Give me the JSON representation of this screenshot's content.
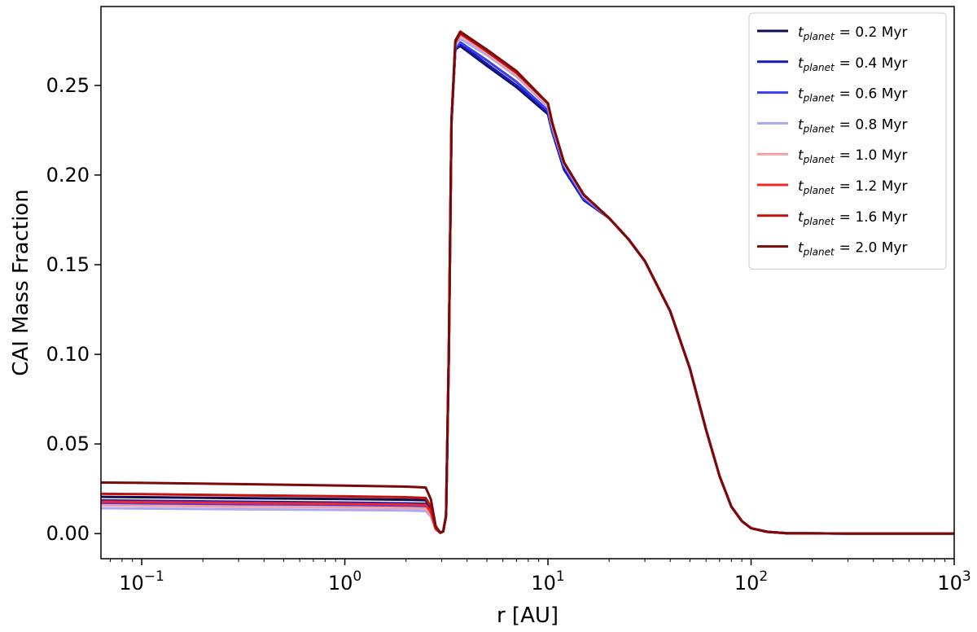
{
  "chart_data": {
    "type": "line",
    "xlabel": "r [AU]",
    "ylabel": "CAI Mass Fraction",
    "xscale": "log",
    "xlim": [
      0.063,
      1000
    ],
    "ylim": [
      -0.014,
      0.294
    ],
    "x_ticks": [
      {
        "value": 0.1,
        "base": "10",
        "exp": "−1"
      },
      {
        "value": 1,
        "base": "10",
        "exp": "0"
      },
      {
        "value": 10,
        "base": "10",
        "exp": "1"
      },
      {
        "value": 100,
        "base": "10",
        "exp": "2"
      },
      {
        "value": 1000,
        "base": "10",
        "exp": "3"
      }
    ],
    "y_ticks": [
      "0.00",
      "0.05",
      "0.10",
      "0.15",
      "0.20",
      "0.25"
    ],
    "legend_position": "top-right",
    "legend_var": "t",
    "legend_sub": "planet",
    "series": [
      {
        "name": "= 0.2 Myr",
        "color": "#0d0d4d",
        "opacity": 1.0,
        "x": [
          0.063,
          0.1,
          0.3,
          1,
          2,
          2.5,
          2.65,
          2.8,
          2.95,
          3.05,
          3.15,
          3.25,
          3.35,
          3.5,
          3.7,
          5,
          7,
          10,
          10.5,
          12,
          15,
          20,
          25,
          30,
          40,
          50,
          60,
          70,
          80,
          90,
          100,
          120,
          150,
          300,
          1000
        ],
        "y": [
          0.0205,
          0.0203,
          0.0198,
          0.0193,
          0.0189,
          0.0186,
          0.014,
          0.003,
          0.0005,
          0.0012,
          0.01,
          0.1,
          0.23,
          0.27,
          0.272,
          0.261,
          0.249,
          0.234,
          0.224,
          0.204,
          0.187,
          0.176,
          0.164,
          0.152,
          0.124,
          0.092,
          0.058,
          0.032,
          0.015,
          0.007,
          0.003,
          0.001,
          0.0002,
          0.0,
          0.0
        ]
      },
      {
        "name": "= 0.4 Myr",
        "color": "#1818b8",
        "opacity": 1.0,
        "x": [
          0.063,
          0.1,
          0.3,
          1,
          2,
          2.5,
          2.65,
          2.8,
          2.95,
          3.05,
          3.15,
          3.25,
          3.35,
          3.5,
          3.7,
          5,
          7,
          10,
          10.5,
          12,
          15,
          20,
          25,
          30,
          40,
          50,
          60,
          70,
          80,
          90,
          100,
          120,
          150,
          300,
          1000
        ],
        "y": [
          0.0185,
          0.0183,
          0.0178,
          0.0173,
          0.0169,
          0.0166,
          0.0125,
          0.0028,
          0.0005,
          0.0012,
          0.01,
          0.1,
          0.23,
          0.27,
          0.273,
          0.262,
          0.25,
          0.235,
          0.224,
          0.203,
          0.186,
          0.176,
          0.164,
          0.152,
          0.124,
          0.092,
          0.058,
          0.032,
          0.015,
          0.007,
          0.003,
          0.001,
          0.0002,
          0.0,
          0.0
        ]
      },
      {
        "name": "= 0.6 Myr",
        "color": "#3c3cf0",
        "opacity": 1.0,
        "x": [
          0.063,
          0.1,
          0.3,
          1,
          2,
          2.5,
          2.65,
          2.8,
          2.95,
          3.05,
          3.15,
          3.25,
          3.35,
          3.5,
          3.7,
          5,
          7,
          10,
          10.5,
          12,
          15,
          20,
          25,
          30,
          40,
          50,
          60,
          70,
          80,
          90,
          100,
          120,
          150,
          300,
          1000
        ],
        "y": [
          0.0165,
          0.0163,
          0.0158,
          0.0153,
          0.015,
          0.0147,
          0.0112,
          0.0025,
          0.0005,
          0.0012,
          0.01,
          0.1,
          0.23,
          0.271,
          0.274,
          0.264,
          0.252,
          0.236,
          0.225,
          0.205,
          0.187,
          0.176,
          0.164,
          0.152,
          0.124,
          0.092,
          0.058,
          0.032,
          0.015,
          0.007,
          0.003,
          0.001,
          0.0002,
          0.0,
          0.0
        ]
      },
      {
        "name": "= 0.8 Myr",
        "color": "#a8a8f5",
        "opacity": 1.0,
        "x": [
          0.063,
          0.1,
          0.3,
          1,
          2,
          2.5,
          2.65,
          2.8,
          2.95,
          3.05,
          3.15,
          3.25,
          3.35,
          3.5,
          3.7,
          5,
          7,
          10,
          10.5,
          12,
          15,
          20,
          25,
          30,
          40,
          50,
          60,
          70,
          80,
          90,
          100,
          120,
          150,
          300,
          1000
        ],
        "y": [
          0.0142,
          0.014,
          0.0136,
          0.0132,
          0.0129,
          0.0126,
          0.0096,
          0.0022,
          0.0005,
          0.0012,
          0.01,
          0.1,
          0.23,
          0.272,
          0.276,
          0.267,
          0.255,
          0.238,
          0.227,
          0.206,
          0.188,
          0.176,
          0.164,
          0.152,
          0.124,
          0.092,
          0.058,
          0.032,
          0.015,
          0.007,
          0.003,
          0.001,
          0.0002,
          0.0,
          0.0
        ]
      },
      {
        "name": "= 1.0 Myr",
        "color": "#f5a0a0",
        "opacity": 1.0,
        "x": [
          0.063,
          0.1,
          0.3,
          1,
          2,
          2.5,
          2.65,
          2.8,
          2.95,
          3.05,
          3.15,
          3.25,
          3.35,
          3.5,
          3.7,
          5,
          7,
          10,
          10.5,
          12,
          15,
          20,
          25,
          30,
          40,
          50,
          60,
          70,
          80,
          90,
          100,
          120,
          150,
          300,
          1000
        ],
        "y": [
          0.0158,
          0.0156,
          0.0151,
          0.0147,
          0.0143,
          0.014,
          0.0106,
          0.0024,
          0.0005,
          0.0012,
          0.01,
          0.1,
          0.23,
          0.273,
          0.278,
          0.268,
          0.256,
          0.239,
          0.228,
          0.207,
          0.189,
          0.176,
          0.164,
          0.152,
          0.124,
          0.092,
          0.058,
          0.032,
          0.015,
          0.007,
          0.003,
          0.001,
          0.0002,
          0.0,
          0.0
        ]
      },
      {
        "name": "= 1.2 Myr",
        "color": "#f02828",
        "opacity": 1.0,
        "x": [
          0.063,
          0.1,
          0.3,
          1,
          2,
          2.5,
          2.65,
          2.8,
          2.95,
          3.05,
          3.15,
          3.25,
          3.35,
          3.5,
          3.7,
          5,
          7,
          10,
          10.5,
          12,
          15,
          20,
          25,
          30,
          40,
          50,
          60,
          70,
          80,
          90,
          100,
          120,
          150,
          300,
          1000
        ],
        "y": [
          0.0178,
          0.0176,
          0.0171,
          0.0166,
          0.0162,
          0.0159,
          0.012,
          0.0027,
          0.0005,
          0.0012,
          0.01,
          0.1,
          0.23,
          0.274,
          0.279,
          0.269,
          0.257,
          0.24,
          0.229,
          0.207,
          0.189,
          0.176,
          0.164,
          0.152,
          0.124,
          0.092,
          0.058,
          0.032,
          0.015,
          0.007,
          0.003,
          0.001,
          0.0002,
          0.0,
          0.0
        ]
      },
      {
        "name": "= 1.6 Myr",
        "color": "#c41010",
        "opacity": 1.0,
        "x": [
          0.063,
          0.1,
          0.3,
          1,
          2,
          2.5,
          2.65,
          2.8,
          2.95,
          3.05,
          3.15,
          3.25,
          3.35,
          3.5,
          3.7,
          5,
          7,
          10,
          10.5,
          12,
          15,
          20,
          25,
          30,
          40,
          50,
          60,
          70,
          80,
          90,
          100,
          120,
          150,
          300,
          1000
        ],
        "y": [
          0.0222,
          0.022,
          0.0214,
          0.0208,
          0.0203,
          0.0199,
          0.015,
          0.0033,
          0.0005,
          0.0012,
          0.01,
          0.1,
          0.23,
          0.274,
          0.279,
          0.269,
          0.257,
          0.24,
          0.229,
          0.207,
          0.189,
          0.176,
          0.164,
          0.152,
          0.124,
          0.092,
          0.058,
          0.032,
          0.015,
          0.007,
          0.003,
          0.001,
          0.0002,
          0.0,
          0.0
        ]
      },
      {
        "name": "= 2.0 Myr",
        "color": "#7a0a0a",
        "opacity": 1.0,
        "x": [
          0.063,
          0.1,
          0.3,
          1,
          2,
          2.5,
          2.65,
          2.8,
          2.95,
          3.05,
          3.15,
          3.25,
          3.35,
          3.5,
          3.7,
          5,
          7,
          10,
          10.5,
          12,
          15,
          20,
          25,
          30,
          40,
          50,
          60,
          70,
          80,
          90,
          100,
          120,
          150,
          300,
          1000
        ],
        "y": [
          0.0285,
          0.0283,
          0.0276,
          0.0268,
          0.0262,
          0.0257,
          0.0193,
          0.0042,
          0.0005,
          0.0012,
          0.01,
          0.1,
          0.23,
          0.275,
          0.28,
          0.27,
          0.258,
          0.24,
          0.229,
          0.207,
          0.189,
          0.176,
          0.164,
          0.152,
          0.124,
          0.092,
          0.058,
          0.032,
          0.015,
          0.007,
          0.003,
          0.001,
          0.0002,
          0.0,
          0.0
        ]
      }
    ]
  }
}
